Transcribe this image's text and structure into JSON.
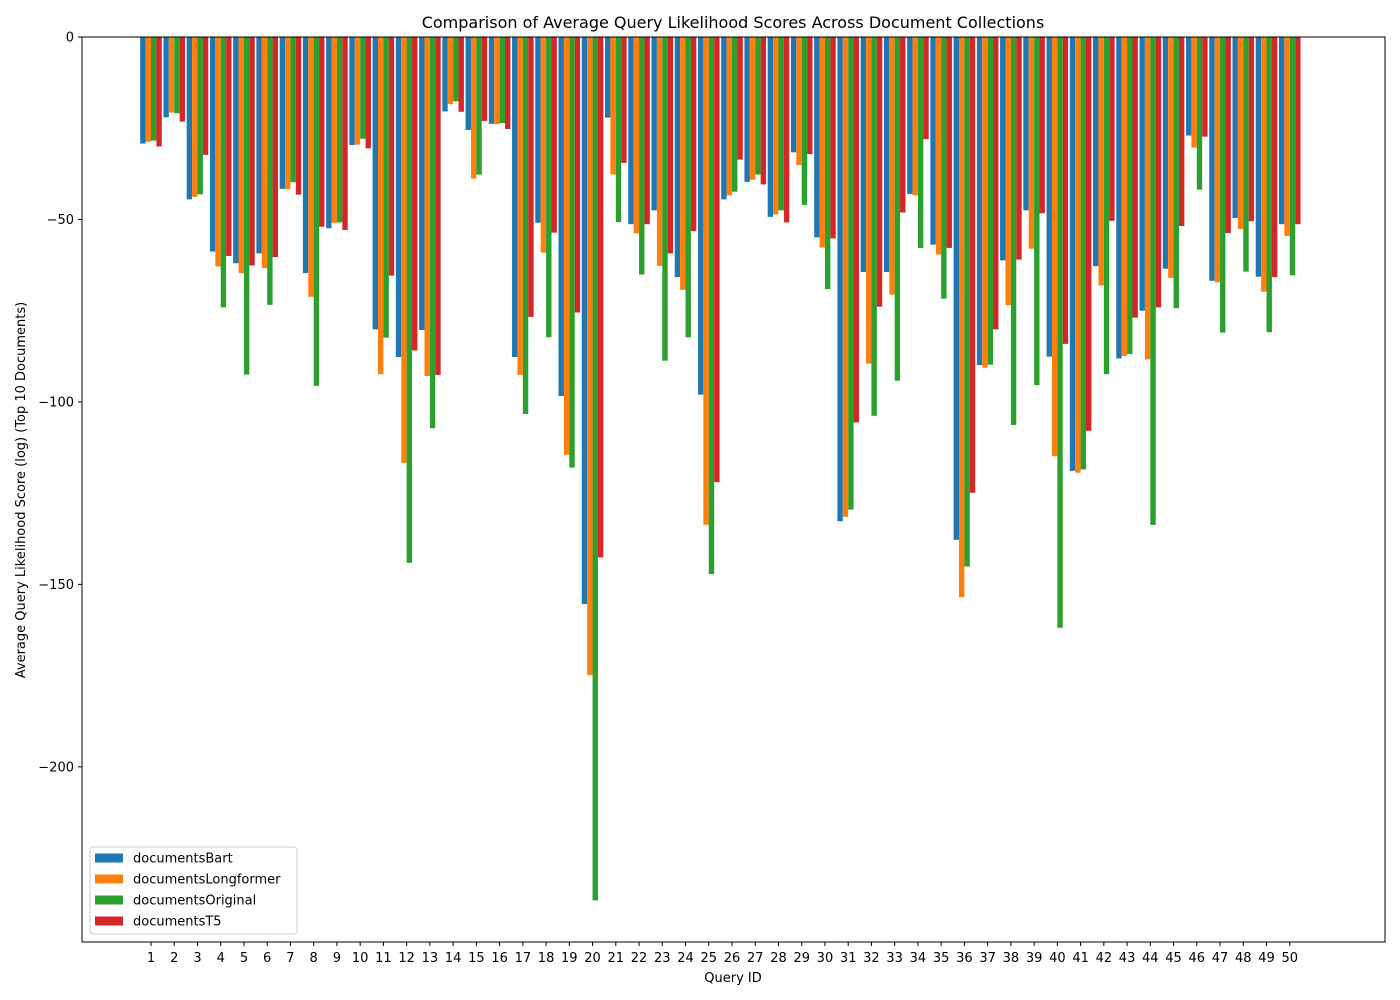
{
  "chart_data": {
    "type": "bar",
    "title": "Comparison of Average Query Likelihood Scores Across Document Collections",
    "xlabel": "Query ID",
    "ylabel": "Average Query Likelihood Score (log) (Top 10 Documents)",
    "ylim": [
      -248,
      0
    ],
    "yticks": [
      0,
      -50,
      -100,
      -150,
      -200
    ],
    "legend_position": "bottom-left",
    "categories": [
      "1",
      "2",
      "3",
      "4",
      "5",
      "6",
      "7",
      "8",
      "9",
      "10",
      "11",
      "12",
      "13",
      "14",
      "15",
      "16",
      "17",
      "18",
      "19",
      "20",
      "21",
      "22",
      "23",
      "24",
      "25",
      "26",
      "27",
      "28",
      "29",
      "30",
      "31",
      "32",
      "33",
      "34",
      "35",
      "36",
      "37",
      "38",
      "39",
      "40",
      "41",
      "42",
      "43",
      "44",
      "45",
      "46",
      "47",
      "48",
      "49",
      "50"
    ],
    "series": [
      {
        "name": "documentsBart",
        "color": "#1f77b4",
        "values": [
          -29.2,
          -22,
          -44.5,
          -58.8,
          -62,
          -59.3,
          -41.6,
          -64.7,
          -52.4,
          -29.6,
          -80.1,
          -87.7,
          -80.3,
          -20.4,
          -25.5,
          -23.8,
          -87.7,
          -50.9,
          -98.4,
          -155.4,
          -22.1,
          -51.3,
          -47.5,
          -65.8,
          -98,
          -44.5,
          -39.7,
          -49.3,
          -31.6,
          -54.9,
          -132.7,
          -64.4,
          -64.4,
          -43,
          -56.9,
          -137.8,
          -89.9,
          -61.2,
          -47.5,
          -87.6,
          -118.9,
          -62.8,
          -88.1,
          -75,
          -63.5,
          -27,
          -66.8,
          -49.6,
          -65.7,
          -51.3
        ]
      },
      {
        "name": "documentsLongformer",
        "color": "#ff7f0e",
        "values": [
          -28.7,
          -20.7,
          -43.8,
          -62.9,
          -64.7,
          -63.3,
          -41.7,
          -71.2,
          -50.9,
          -29.5,
          -92.4,
          -116.7,
          -92.9,
          -18.4,
          -38.8,
          -23.9,
          -92.6,
          -59.1,
          -114.5,
          -174.9,
          -37.7,
          -53.8,
          -62.7,
          -69.3,
          -133.7,
          -43.4,
          -39.1,
          -48.6,
          -35.1,
          -57.7,
          -131.5,
          -89.5,
          -70.6,
          -43.4,
          -59.6,
          -153.5,
          -90.6,
          -73.5,
          -58,
          -114.9,
          -119.4,
          -68.1,
          -87.4,
          -88.3,
          -66,
          -30.3,
          -67.2,
          -52.6,
          -69.8,
          -54.5
        ]
      },
      {
        "name": "documentsOriginal",
        "color": "#2ca02c",
        "values": [
          -28.4,
          -20.9,
          -43.1,
          -74.1,
          -92.5,
          -73.4,
          -39.8,
          -95.6,
          -50.8,
          -27.9,
          -82.4,
          -144.1,
          -107.2,
          -17.6,
          -37.7,
          -23.6,
          -103.3,
          -82.3,
          -118,
          -236.6,
          -50.7,
          -65.1,
          -88.7,
          -82.3,
          -147.2,
          -42.4,
          -37.7,
          -47.5,
          -46,
          -69.1,
          -129.5,
          -103.8,
          -94.2,
          -57.8,
          -71.7,
          -145.1,
          -89.8,
          -106.3,
          -95.4,
          -161.9,
          -118.5,
          -92.4,
          -86.9,
          -133.7,
          -74.3,
          -41.8,
          -81,
          -64.3,
          -80.9,
          -65.3
        ]
      },
      {
        "name": "documentsT5",
        "color": "#d62728",
        "values": [
          -30,
          -23.2,
          -32.3,
          -60,
          -62.6,
          -60.3,
          -43.2,
          -52,
          -52.9,
          -30.5,
          -65.4,
          -85.9,
          -92.6,
          -20.5,
          -23,
          -25.2,
          -76.7,
          -53.6,
          -75.5,
          -142.6,
          -34.5,
          -51.3,
          -59.3,
          -53.2,
          -122,
          -33.6,
          -40.4,
          -50.8,
          -32.1,
          -55.2,
          -105.6,
          -73.9,
          -48.1,
          -28,
          -57.8,
          -124.9,
          -80.1,
          -61,
          -48.3,
          -84.1,
          -107.9,
          -50.4,
          -76.9,
          -74.1,
          -51.8,
          -27.3,
          -53.7,
          -50.5,
          -65.8,
          -51.3
        ]
      }
    ]
  }
}
